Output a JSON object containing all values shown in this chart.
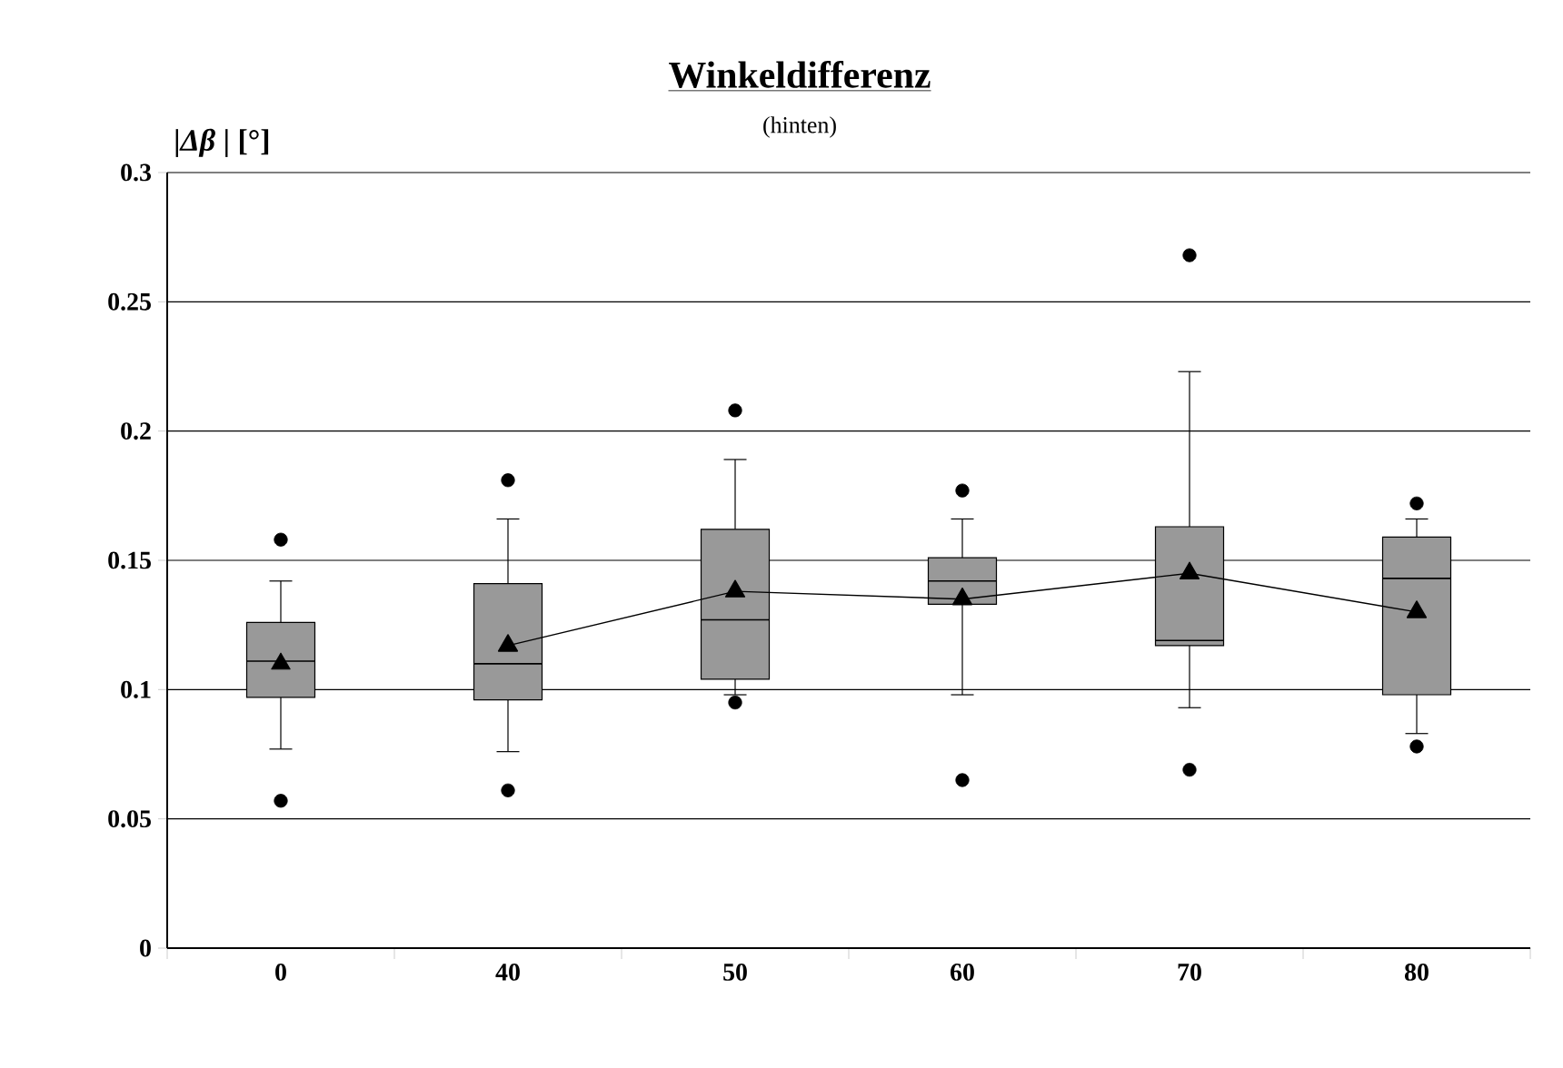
{
  "chart_data": {
    "type": "box",
    "title": "Winkeldifferenz",
    "subtitle": "(hinten)",
    "ylabel": "|*Δβ*  | [°]",
    "categories": [
      "0",
      "40",
      "50",
      "60",
      "70",
      "80"
    ],
    "color": "#999999",
    "boxes": [
      {
        "low": 0.077,
        "q1": 0.097,
        "median": 0.111,
        "q3": 0.126,
        "high": 0.142,
        "mean": 0.11,
        "outliers": [
          0.057,
          0.158
        ]
      },
      {
        "low": 0.076,
        "q1": 0.096,
        "median": 0.11,
        "q3": 0.141,
        "high": 0.166,
        "outliers": [
          0.061,
          0.181
        ]
      },
      {
        "low": 0.098,
        "q1": 0.104,
        "median": 0.127,
        "q3": 0.162,
        "high": 0.189,
        "outliers": [
          0.095,
          0.208
        ]
      },
      {
        "low": 0.098,
        "q1": 0.133,
        "median": 0.142,
        "q3": 0.151,
        "high": 0.166,
        "outliers": [
          0.065,
          0.177
        ]
      },
      {
        "low": 0.093,
        "q1": 0.117,
        "median": 0.119,
        "q3": 0.163,
        "high": 0.223,
        "outliers": [
          0.069,
          0.268
        ]
      },
      {
        "low": 0.083,
        "q1": 0.098,
        "median": 0.143,
        "q3": 0.159,
        "high": 0.166,
        "outliers": [
          0.078,
          0.172
        ]
      }
    ],
    "series": [
      {
        "type": "line",
        "color": "#000000",
        "marker": "triangle",
        "values": [
          null,
          0.117,
          0.138,
          0.135,
          0.145,
          0.13
        ]
      }
    ],
    "ylim": [
      0,
      0.3
    ],
    "yticks": [
      0,
      0.05,
      0.1,
      0.15,
      0.2,
      0.25,
      0.3
    ],
    "grid": "y"
  }
}
